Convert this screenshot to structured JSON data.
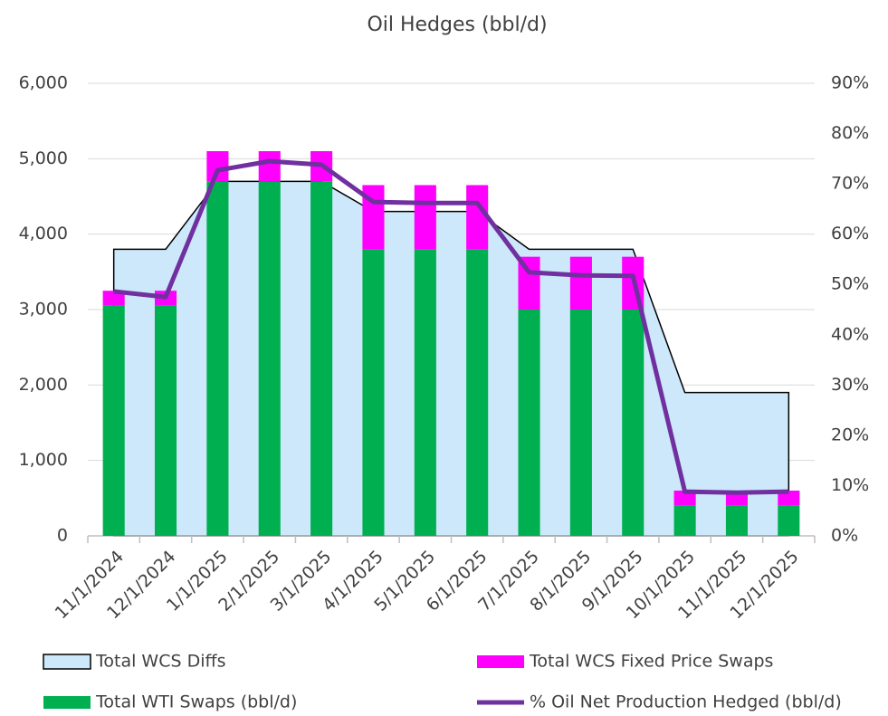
{
  "chart_data": {
    "type": "combo",
    "title": "Oil Hedges (bbl/d)",
    "categories": [
      "11/1/2024",
      "12/1/2024",
      "1/1/2025",
      "2/1/2025",
      "3/1/2025",
      "4/1/2025",
      "5/1/2025",
      "6/1/2025",
      "7/1/2025",
      "8/1/2025",
      "9/1/2025",
      "10/1/2025",
      "11/1/2025",
      "12/1/2025"
    ],
    "series": [
      {
        "name": "Total WCS Diffs",
        "type": "area",
        "color": "#cce8fa",
        "values": [
          3800,
          3800,
          4700,
          4700,
          4700,
          4300,
          4300,
          4300,
          3800,
          3800,
          3800,
          1900,
          1900,
          1900
        ]
      },
      {
        "name": "Total WCS Fixed Price Swaps",
        "type": "bar",
        "stack": true,
        "color": "#ff00ff",
        "values": [
          200,
          200,
          400,
          400,
          400,
          850,
          850,
          850,
          700,
          700,
          700,
          200,
          200,
          200
        ]
      },
      {
        "name": "Total WTI Swaps (bbl/d)",
        "type": "bar",
        "color": "#00b050",
        "values": [
          3050,
          3050,
          4700,
          4700,
          4700,
          3800,
          3800,
          3800,
          3000,
          3000,
          3000,
          400,
          400,
          400
        ]
      },
      {
        "name": "% Oil Net Production Hedged (bbl/d)",
        "type": "line",
        "axis": "y2",
        "color": "#7030a0",
        "values": [
          48.6,
          47.5,
          72.7,
          74.5,
          73.8,
          66.4,
          66.2,
          66.2,
          52.4,
          51.8,
          51.7,
          8.8,
          8.6,
          8.8
        ]
      }
    ],
    "ylim": [
      0,
      6000
    ],
    "yticks": [
      0,
      {
        "value": 1000,
        "label": "1,000"
      },
      {
        "value": 2000,
        "label": "2,000"
      },
      {
        "value": 3000,
        "label": "3,000"
      },
      {
        "value": 4000,
        "label": "4,000"
      },
      {
        "value": 5000,
        "label": "5,000"
      },
      {
        "value": 6000,
        "label": "6,000"
      }
    ],
    "y2lim": [
      0,
      90
    ],
    "y2ticks": [
      {
        "value": 0,
        "label": "0%"
      },
      {
        "value": 10,
        "label": "10%"
      },
      {
        "value": 20,
        "label": "20%"
      },
      {
        "value": 30,
        "label": "30%"
      },
      {
        "value": 40,
        "label": "40%"
      },
      {
        "value": 50,
        "label": "50%"
      },
      {
        "value": 60,
        "label": "60%"
      },
      {
        "value": 70,
        "label": "70%"
      },
      {
        "value": 80,
        "label": "80%"
      },
      {
        "value": 90,
        "label": "90%"
      }
    ],
    "grid": true
  }
}
